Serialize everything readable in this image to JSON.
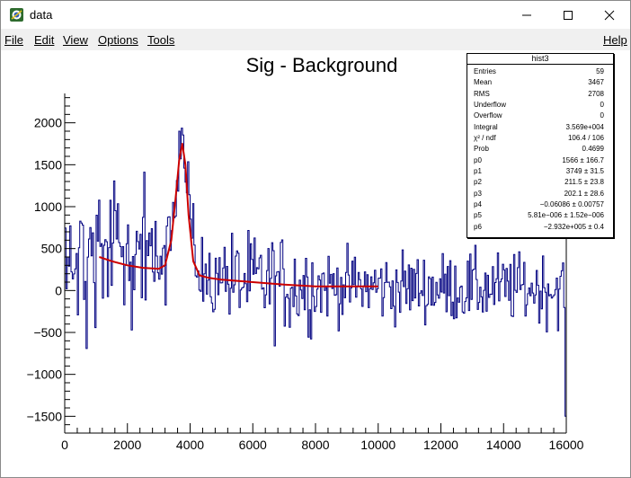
{
  "window": {
    "title": "data"
  },
  "menu": {
    "file": "File",
    "edit": "Edit",
    "view": "View",
    "options": "Options",
    "tools": "Tools",
    "help": "Help"
  },
  "colors": {
    "histogram": "#000080",
    "fit": "#cc0000",
    "frame": "#000000"
  },
  "icons": {
    "app": "root-canvas-icon",
    "minimize": "minimize-icon",
    "maximize": "maximize-icon",
    "close": "close-icon"
  },
  "stats": {
    "title": "hist3",
    "rows": [
      {
        "label": "Entries",
        "value": "59"
      },
      {
        "label": "Mean",
        "value": "3467"
      },
      {
        "label": "RMS",
        "value": "2708"
      },
      {
        "label": "Underflow",
        "value": "0"
      },
      {
        "label": "Overflow",
        "value": "0"
      },
      {
        "label": "Integral",
        "value": "3.569e+004"
      },
      {
        "label": "χ² / ndf",
        "value": "106.4 / 106"
      },
      {
        "label": "Prob",
        "value": "0.4699"
      },
      {
        "label": "p0",
        "value": "1566 ± 166.7"
      },
      {
        "label": "p1",
        "value": "3749 ± 31.5"
      },
      {
        "label": "p2",
        "value": "211.5 ± 23.8"
      },
      {
        "label": "p3",
        "value": "202.1 ± 28.6"
      },
      {
        "label": "p4",
        "value": "−0.06086 ± 0.00757"
      },
      {
        "label": "p5",
        "value": "5.81e−006 ± 1.52e−006"
      },
      {
        "label": "p6",
        "value": "−2.932e+005 ± 0.4"
      }
    ]
  },
  "chart_data": {
    "type": "line",
    "title": "Sig - Background",
    "xlabel": "",
    "ylabel": "",
    "xlim": [
      0,
      16000
    ],
    "ylim": [
      -1700,
      2350
    ],
    "x_ticks": [
      0,
      2000,
      4000,
      6000,
      8000,
      10000,
      12000,
      14000,
      16000
    ],
    "x_tick_labels": [
      "0",
      "2000",
      "4000",
      "6000",
      "8000",
      "10000",
      "12000",
      "14000",
      "16000"
    ],
    "y_ticks": [
      -1500,
      -1000,
      -500,
      0,
      500,
      1000,
      1500,
      2000
    ],
    "y_tick_labels": [
      "−1500",
      "−1000",
      "−500",
      "0",
      "500",
      "1000",
      "1500",
      "2000"
    ],
    "grid": false,
    "series": [
      {
        "kind": "histogram",
        "bin_width": 40,
        "x": [
          0,
          16000
        ],
        "y_approx": {
          "0-1000": "noisy, -500 to 1500",
          "1000-3200": "noisy, -800 to 1700",
          "3200-4000": "peak near 3750, up to ~2050",
          "4000-8000": "noisy, -850 to 1000",
          "8000-16000": "noisy, -700 to 700, final bin ~ -1500"
        }
      },
      {
        "kind": "fit",
        "x": [
          1100,
          1500,
          2000,
          2500,
          3000,
          3200,
          3400,
          3550,
          3650,
          3750,
          3850,
          3950,
          4100,
          4300,
          4600,
          5000,
          6000,
          7000,
          8000,
          9000,
          10000
        ],
        "y": [
          400,
          350,
          300,
          270,
          260,
          300,
          600,
          1150,
          1550,
          1750,
          1500,
          900,
          350,
          180,
          150,
          130,
          100,
          70,
          50,
          50,
          50
        ]
      }
    ]
  }
}
